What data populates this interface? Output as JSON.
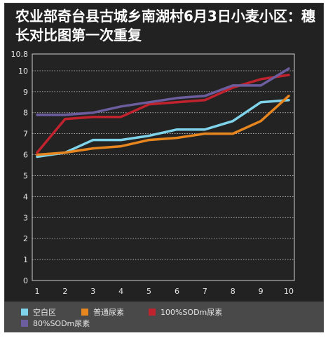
{
  "title": "农业部奇台县古城乡南湖村6月3日小麦小区：穗长对比图第一次重复",
  "chart_data": {
    "type": "line",
    "title": "农业部奇台县古城乡南湖村6月3日小麦小区：穗长对比图第一次重复",
    "x": [
      1,
      2,
      3,
      4,
      5,
      6,
      7,
      8,
      9,
      10
    ],
    "xlabel": "",
    "ylabel": "",
    "ylim": [
      0,
      10.8
    ],
    "y_ticks": [
      0,
      1,
      2,
      3,
      4,
      5,
      6,
      7,
      8,
      9,
      10,
      10.8
    ],
    "grid": true,
    "legend_position": "bottom",
    "series": [
      {
        "name": "空白区",
        "color": "#7fd3ea",
        "values": [
          5.9,
          6.1,
          6.7,
          6.7,
          6.9,
          7.2,
          7.2,
          7.6,
          8.5,
          8.6
        ]
      },
      {
        "name": "普通尿素",
        "color": "#e7861f",
        "values": [
          6.0,
          6.1,
          6.3,
          6.4,
          6.7,
          6.8,
          7.0,
          7.0,
          7.6,
          8.8
        ]
      },
      {
        "name": "100%SODm尿素",
        "color": "#c0222e",
        "values": [
          6.1,
          7.7,
          7.8,
          7.8,
          8.4,
          8.5,
          8.6,
          9.2,
          9.6,
          9.8
        ]
      },
      {
        "name": "80%SODm尿素",
        "color": "#6c5d9e",
        "values": [
          7.9,
          7.9,
          8.0,
          8.3,
          8.5,
          8.7,
          8.8,
          9.3,
          9.3,
          10.1
        ]
      }
    ]
  }
}
